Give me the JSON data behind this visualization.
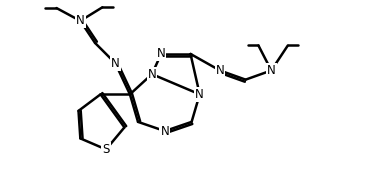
{
  "bg_color": "#ffffff",
  "atom_color": "#000000",
  "bond_color": "#000000",
  "bond_width": 1.8,
  "dbo": 0.06,
  "font_size": 8.5,
  "fig_width": 3.7,
  "fig_height": 1.85,
  "dpi": 100,
  "xlim": [
    0,
    10
  ],
  "ylim": [
    0,
    5
  ]
}
